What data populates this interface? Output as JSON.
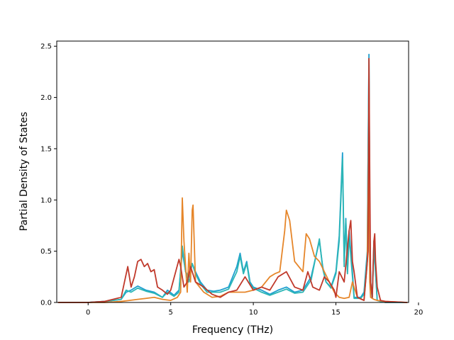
{
  "chart_data": {
    "type": "line",
    "title": "",
    "xlabel": "Frequency (THz)",
    "ylabel": "Partial Density of States",
    "xlim": [
      -1.9,
      19.4
    ],
    "ylim": [
      0.0,
      2.55
    ],
    "xticks": [
      0,
      5,
      10,
      15,
      20
    ],
    "xtick_labels": [
      "0",
      "5",
      "10",
      "15",
      "20"
    ],
    "yticks": [
      0.0,
      0.5,
      1.0,
      1.5,
      2.0,
      2.5
    ],
    "ytick_labels": [
      "0.0",
      "0.5",
      "1.0",
      "1.5",
      "2.0",
      "2.5"
    ],
    "grid": false,
    "legend": "none",
    "series": [
      {
        "color": "#1f9fcf",
        "x": [
          -1.8,
          0,
          1,
          2,
          2.3,
          2.6,
          3,
          3.5,
          4,
          4.5,
          4.8,
          5.2,
          5.5,
          5.7,
          5.9,
          6.1,
          6.3,
          6.5,
          6.8,
          7.2,
          7.6,
          8,
          8.5,
          9,
          9.2,
          9.4,
          9.6,
          9.8,
          10,
          10.5,
          11,
          11.5,
          12,
          12.5,
          13,
          13.5,
          14,
          14.2,
          14.4,
          14.7,
          15,
          15.2,
          15.4,
          15.5,
          15.6,
          15.7,
          15.8,
          15.9,
          16,
          16.1,
          16.3,
          16.5,
          16.7,
          16.9,
          17.0,
          17.05,
          17.1,
          17.2,
          17.3,
          17.4,
          17.5,
          17.7,
          18,
          19.3
        ],
        "y": [
          0,
          0,
          0.01,
          0.03,
          0.1,
          0.12,
          0.16,
          0.12,
          0.1,
          0.05,
          0.12,
          0.07,
          0.12,
          0.5,
          0.3,
          0.25,
          0.38,
          0.3,
          0.2,
          0.12,
          0.11,
          0.12,
          0.15,
          0.35,
          0.48,
          0.3,
          0.4,
          0.2,
          0.15,
          0.12,
          0.08,
          0.12,
          0.15,
          0.1,
          0.12,
          0.25,
          0.6,
          0.35,
          0.2,
          0.15,
          0.3,
          0.65,
          1.46,
          0.4,
          0.82,
          0.3,
          0.7,
          0.5,
          0.3,
          0.05,
          0.05,
          0.05,
          0.1,
          0.5,
          2.42,
          0.8,
          0.2,
          0.05,
          0.6,
          0.3,
          0.02,
          0.01,
          0,
          0
        ]
      },
      {
        "color": "#2cb6b6",
        "x": [
          -1.8,
          0,
          1,
          2,
          2.3,
          2.6,
          3,
          3.5,
          4,
          4.5,
          4.8,
          5.2,
          5.5,
          5.7,
          5.9,
          6.1,
          6.3,
          6.5,
          6.8,
          7.2,
          7.6,
          8,
          8.5,
          9,
          9.2,
          9.4,
          9.6,
          9.8,
          10,
          10.5,
          11,
          11.5,
          12,
          12.5,
          13,
          13.5,
          14,
          14.2,
          14.4,
          14.7,
          15,
          15.2,
          15.4,
          15.5,
          15.6,
          15.7,
          15.8,
          15.9,
          16,
          16.1,
          16.3,
          16.5,
          16.7,
          16.9,
          17.0,
          17.05,
          17.1,
          17.2,
          17.3,
          17.4,
          17.5,
          17.7,
          18,
          19.3
        ],
        "y": [
          0,
          0,
          0.01,
          0.03,
          0.12,
          0.1,
          0.14,
          0.11,
          0.09,
          0.05,
          0.1,
          0.06,
          0.1,
          0.55,
          0.3,
          0.2,
          0.38,
          0.28,
          0.18,
          0.1,
          0.1,
          0.1,
          0.13,
          0.3,
          0.45,
          0.28,
          0.38,
          0.18,
          0.14,
          0.1,
          0.07,
          0.1,
          0.13,
          0.09,
          0.1,
          0.22,
          0.62,
          0.33,
          0.2,
          0.14,
          0.28,
          0.6,
          1.4,
          0.35,
          0.8,
          0.28,
          0.65,
          0.45,
          0.25,
          0.04,
          0.04,
          0.04,
          0.08,
          0.45,
          2.38,
          0.75,
          0.18,
          0.04,
          0.55,
          0.28,
          0.02,
          0.01,
          0,
          0
        ]
      },
      {
        "color": "#e6862a",
        "x": [
          -1.8,
          0,
          1,
          2,
          2.5,
          3,
          3.5,
          4,
          4.5,
          5,
          5.4,
          5.6,
          5.7,
          5.8,
          6.0,
          6.1,
          6.2,
          6.3,
          6.35,
          6.5,
          7,
          7.5,
          8,
          8.5,
          9,
          9.5,
          10,
          10.5,
          11,
          11.3,
          11.6,
          11.9,
          12.0,
          12.2,
          12.5,
          13,
          13.2,
          13.4,
          13.7,
          14,
          14.3,
          14.6,
          14.9,
          15.2,
          15.5,
          15.8,
          16.0,
          16.3,
          16.7,
          16.9,
          17.0,
          17.05,
          17.1,
          17.3,
          17.5,
          18,
          19.3
        ],
        "y": [
          0,
          0,
          0,
          0.01,
          0.02,
          0.03,
          0.04,
          0.05,
          0.03,
          0.02,
          0.05,
          0.1,
          1.02,
          0.6,
          0.1,
          0.48,
          0.2,
          0.9,
          0.95,
          0.2,
          0.1,
          0.05,
          0.06,
          0.1,
          0.1,
          0.1,
          0.12,
          0.15,
          0.25,
          0.28,
          0.3,
          0.7,
          0.9,
          0.8,
          0.4,
          0.3,
          0.67,
          0.62,
          0.45,
          0.4,
          0.3,
          0.2,
          0.1,
          0.05,
          0.04,
          0.05,
          0.2,
          0.05,
          0.02,
          0.4,
          1.8,
          0.2,
          0.05,
          0.03,
          0.02,
          0.01,
          0
        ]
      },
      {
        "color": "#c0392b",
        "x": [
          -1.8,
          0,
          1,
          2,
          2.2,
          2.4,
          2.6,
          2.8,
          3.0,
          3.2,
          3.4,
          3.6,
          3.8,
          4.0,
          4.2,
          4.5,
          4.8,
          5.0,
          5.3,
          5.5,
          5.6,
          5.8,
          6.0,
          6.2,
          6.5,
          7,
          7.5,
          8,
          8.5,
          9,
          9.5,
          10,
          10.5,
          11,
          11.5,
          12,
          12.5,
          13,
          13.3,
          13.6,
          14,
          14.3,
          14.6,
          14.9,
          15,
          15.2,
          15.5,
          15.8,
          15.9,
          16.0,
          16.1,
          16.3,
          16.7,
          16.85,
          16.95,
          17.0,
          17.05,
          17.1,
          17.2,
          17.3,
          17.35,
          17.4,
          17.5,
          17.7,
          18,
          19.3
        ],
        "y": [
          0,
          0,
          0.01,
          0.05,
          0.2,
          0.35,
          0.15,
          0.25,
          0.4,
          0.42,
          0.35,
          0.38,
          0.3,
          0.32,
          0.15,
          0.12,
          0.08,
          0.12,
          0.3,
          0.42,
          0.35,
          0.15,
          0.2,
          0.35,
          0.2,
          0.15,
          0.08,
          0.05,
          0.1,
          0.12,
          0.25,
          0.12,
          0.15,
          0.12,
          0.25,
          0.3,
          0.15,
          0.12,
          0.3,
          0.15,
          0.12,
          0.25,
          0.2,
          0.12,
          0.05,
          0.3,
          0.2,
          0.7,
          0.8,
          0.4,
          0.3,
          0.05,
          0.02,
          0.3,
          0.5,
          2.38,
          1.2,
          0.2,
          0.05,
          0.6,
          0.67,
          0.4,
          0.15,
          0.02,
          0.01,
          0
        ]
      }
    ]
  }
}
